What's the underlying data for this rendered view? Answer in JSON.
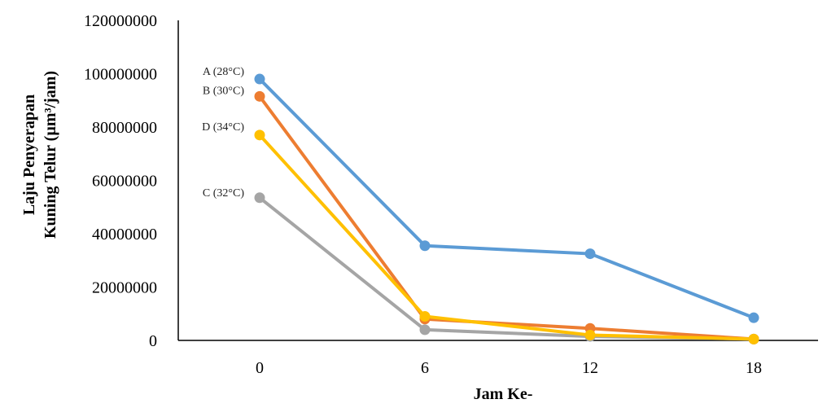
{
  "chart_data": {
    "type": "line",
    "title": "",
    "xlabel": "Jam Ke-",
    "ylabel_line1": "Laju Penyerapan",
    "ylabel_line2": "Kuning Telur (µm³/jam)",
    "x": [
      0,
      6,
      12,
      18
    ],
    "x_tick_labels": [
      "0",
      "6",
      "12",
      "18"
    ],
    "ylim": [
      0,
      120000000
    ],
    "y_tick_labels": [
      "0",
      "20000000",
      "40000000",
      "60000000",
      "80000000",
      "100000000",
      "120000000"
    ],
    "y_ticks": [
      0,
      20000000,
      40000000,
      60000000,
      80000000,
      100000000,
      120000000
    ],
    "grid": false,
    "legend": "inline labels at left of first point",
    "series": [
      {
        "name": "A (28°C)",
        "color": "#5B9BD5",
        "values": [
          98000000,
          35500000,
          32500000,
          8500000
        ]
      },
      {
        "name": "B  (30°C)",
        "color": "#ED7D31",
        "values": [
          91500000,
          8000000,
          4500000,
          500000
        ]
      },
      {
        "name": "C  (32°C)",
        "color": "#A5A5A5",
        "values": [
          53500000,
          4000000,
          1500000,
          500000
        ]
      },
      {
        "name": "D  (34°C)",
        "color": "#FFC000",
        "values": [
          77000000,
          9000000,
          2000000,
          500000
        ]
      }
    ]
  }
}
